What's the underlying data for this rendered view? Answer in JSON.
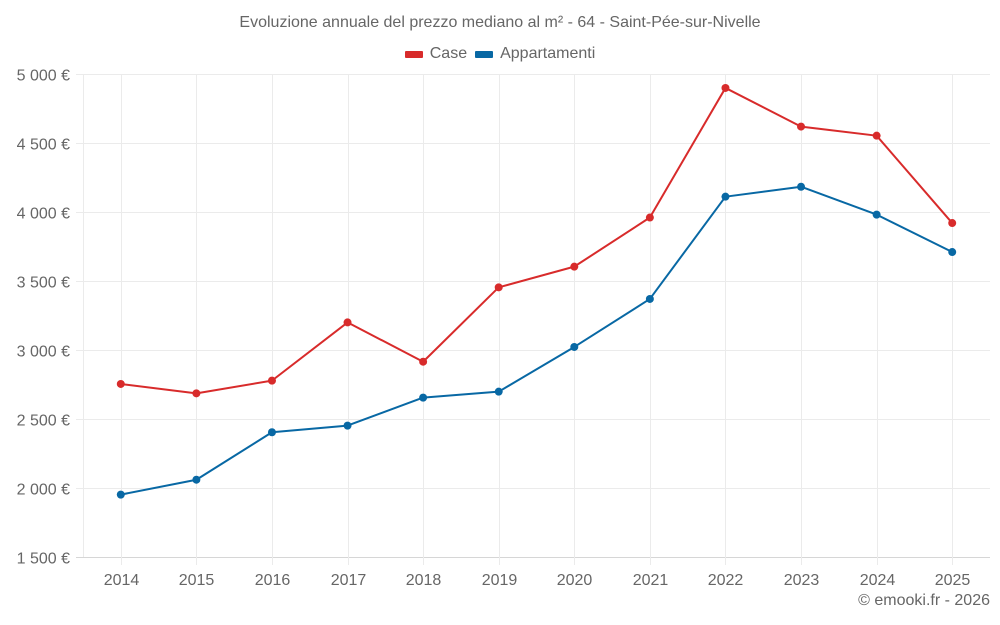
{
  "chart_data": {
    "type": "line",
    "title": "Evoluzione annuale del prezzo mediano al m² - 64 - Saint-Pée-sur-Nivelle",
    "xlabel": "",
    "ylabel": "",
    "categories": [
      "2014",
      "2015",
      "2016",
      "2017",
      "2018",
      "2019",
      "2020",
      "2021",
      "2022",
      "2023",
      "2024",
      "2025"
    ],
    "ylim": [
      1500,
      5000
    ],
    "yticks": [
      1500,
      2000,
      2500,
      3000,
      3500,
      4000,
      4500,
      5000
    ],
    "ytick_labels": [
      "1 500 €",
      "2 000 €",
      "2 500 €",
      "3 000 €",
      "3 500 €",
      "4 000 €",
      "4 500 €",
      "5 000 €"
    ],
    "grid": true,
    "legend_position": "top-center",
    "series": [
      {
        "name": "Case",
        "color": "#d82b2b",
        "values": [
          2754,
          2686,
          2778,
          3200,
          2915,
          3454,
          3604,
          3960,
          4899,
          4619,
          4553,
          3920
        ]
      },
      {
        "name": "Appartamenti",
        "color": "#0868a4",
        "values": [
          1952,
          2060,
          2404,
          2452,
          2655,
          2698,
          3022,
          3370,
          4111,
          4183,
          3981,
          3710
        ]
      }
    ]
  },
  "credit": "© emooki.fr - 2026"
}
